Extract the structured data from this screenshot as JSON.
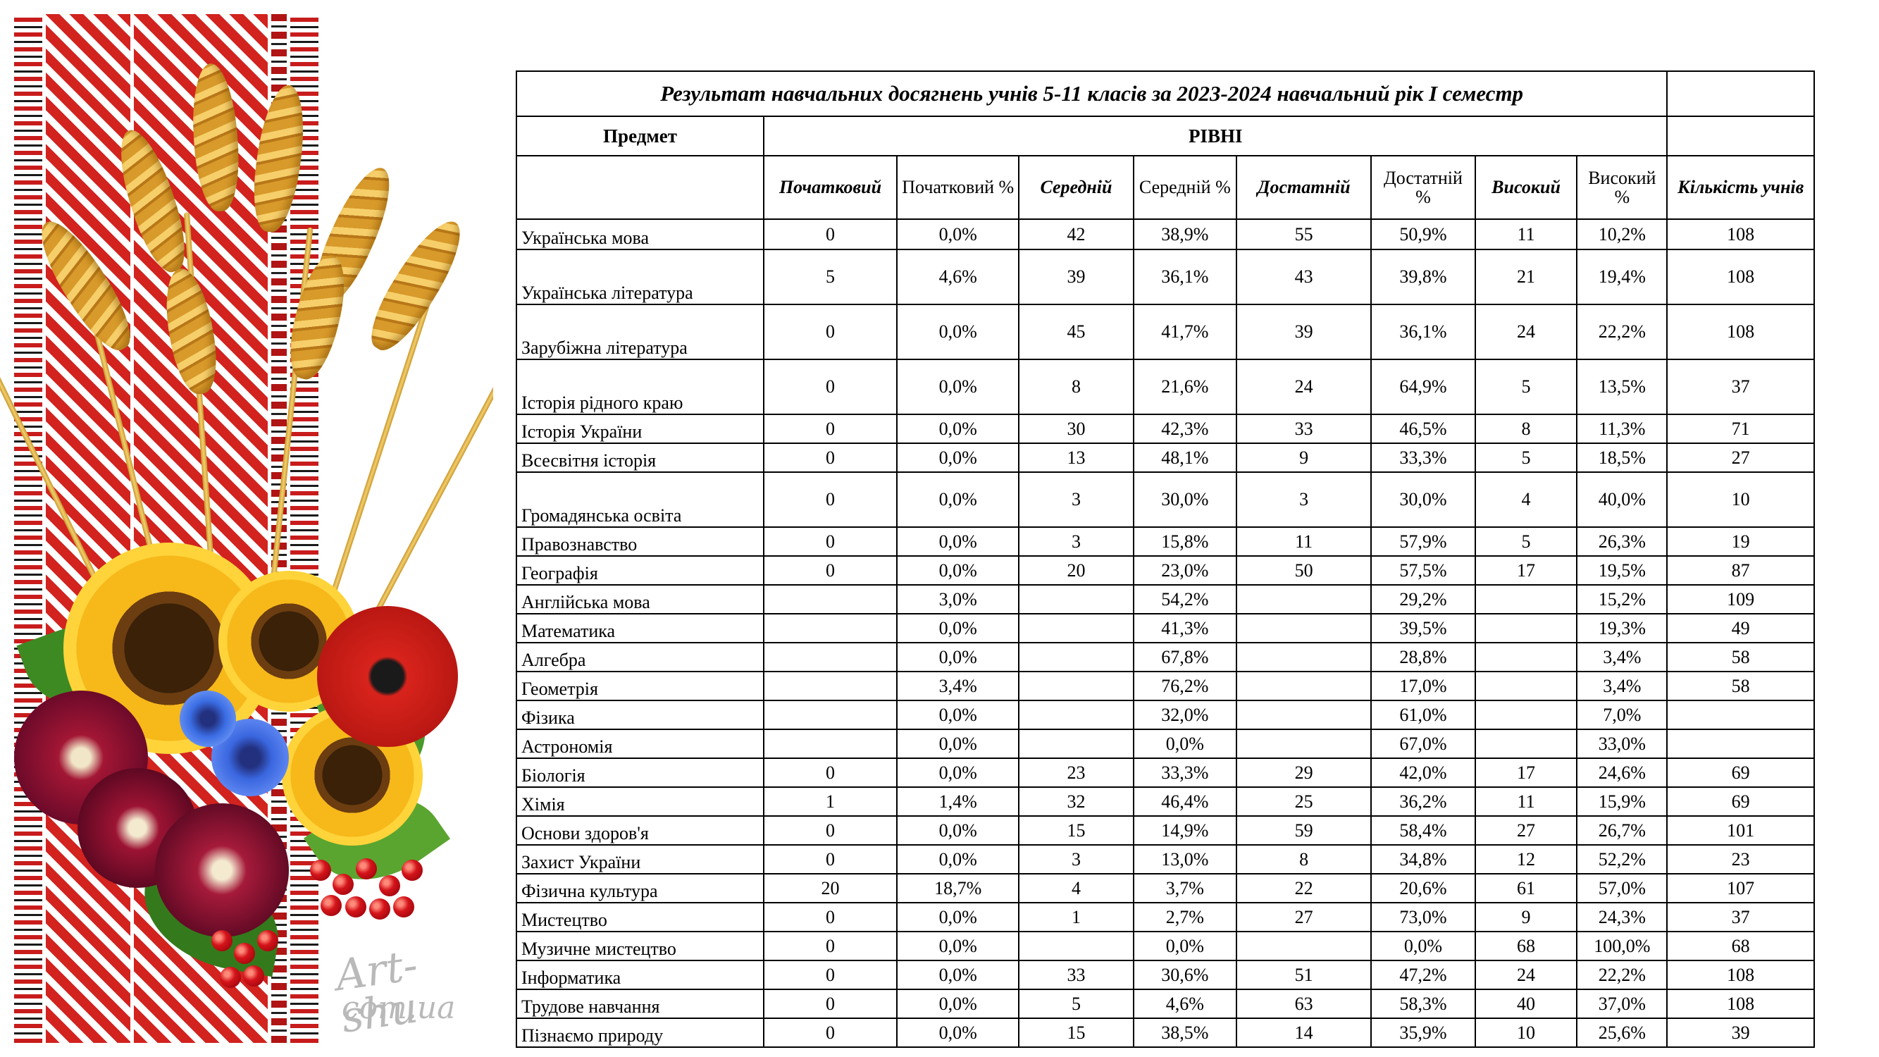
{
  "title": "Результат навчальних досягнень учнів 5-11 класів за 2023-2024 навчальний рік І семестр",
  "headers": {
    "subject": "Предмет",
    "levels": "РІВНІ",
    "beginning": "Початковий",
    "beginning_pct": "Початковий %",
    "middle": "Середній",
    "middle_pct": "Середній %",
    "sufficient": "Достатній",
    "sufficient_pct": "Достатній %",
    "high": "Високий",
    "high_pct": "Високий %",
    "count": "Кількість учнів"
  },
  "watermark": {
    "line1": "Art-shu",
    "line2": "com.ua"
  },
  "rows": [
    {
      "subject": "Українська мова",
      "c0": "0",
      "c1": "0,0%",
      "c2": "42",
      "c3": "38,9%",
      "c4": "55",
      "c5": "50,9%",
      "c6": "11",
      "c7": "10,2%",
      "c8": "108",
      "tall": false
    },
    {
      "subject": "Українська література",
      "c0": "5",
      "c1": "4,6%",
      "c2": "39",
      "c3": "36,1%",
      "c4": "43",
      "c5": "39,8%",
      "c6": "21",
      "c7": "19,4%",
      "c8": "108",
      "tall": true
    },
    {
      "subject": "Зарубіжна література",
      "c0": "0",
      "c1": "0,0%",
      "c2": "45",
      "c3": "41,7%",
      "c4": "39",
      "c5": "36,1%",
      "c6": "24",
      "c7": "22,2%",
      "c8": "108",
      "tall": true
    },
    {
      "subject": "Історія рідного краю",
      "c0": "0",
      "c1": "0,0%",
      "c2": "8",
      "c3": "21,6%",
      "c4": "24",
      "c5": "64,9%",
      "c6": "5",
      "c7": "13,5%",
      "c8": "37",
      "tall": true
    },
    {
      "subject": "Історія України",
      "c0": "0",
      "c1": "0,0%",
      "c2": "30",
      "c3": "42,3%",
      "c4": "33",
      "c5": "46,5%",
      "c6": "8",
      "c7": "11,3%",
      "c8": "71",
      "tall": false
    },
    {
      "subject": "Всесвітня історія",
      "c0": "0",
      "c1": "0,0%",
      "c2": "13",
      "c3": "48,1%",
      "c4": "9",
      "c5": "33,3%",
      "c6": "5",
      "c7": "18,5%",
      "c8": "27",
      "tall": false
    },
    {
      "subject": "Громадянська освіта",
      "c0": "0",
      "c1": "0,0%",
      "c2": "3",
      "c3": "30,0%",
      "c4": "3",
      "c5": "30,0%",
      "c6": "4",
      "c7": "40,0%",
      "c8": "10",
      "tall": true
    },
    {
      "subject": "Правознавство",
      "c0": "0",
      "c1": "0,0%",
      "c2": "3",
      "c3": "15,8%",
      "c4": "11",
      "c5": "57,9%",
      "c6": "5",
      "c7": "26,3%",
      "c8": "19",
      "tall": false
    },
    {
      "subject": "Географія",
      "c0": "0",
      "c1": "0,0%",
      "c2": "20",
      "c3": "23,0%",
      "c4": "50",
      "c5": "57,5%",
      "c6": "17",
      "c7": "19,5%",
      "c8": "87",
      "tall": false
    },
    {
      "subject": "Англійська мова",
      "c0": "",
      "c1": "3,0%",
      "c2": "",
      "c3": "54,2%",
      "c4": "",
      "c5": "29,2%",
      "c6": "",
      "c7": "15,2%",
      "c8": "109",
      "tall": false
    },
    {
      "subject": "Математика",
      "c0": "",
      "c1": "0,0%",
      "c2": "",
      "c3": "41,3%",
      "c4": "",
      "c5": "39,5%",
      "c6": "",
      "c7": "19,3%",
      "c8": "49",
      "tall": false
    },
    {
      "subject": "Алгебра",
      "c0": "",
      "c1": "0,0%",
      "c2": "",
      "c3": "67,8%",
      "c4": "",
      "c5": "28,8%",
      "c6": "",
      "c7": "3,4%",
      "c8": "58",
      "tall": false
    },
    {
      "subject": "Геометрія",
      "c0": "",
      "c1": "3,4%",
      "c2": "",
      "c3": "76,2%",
      "c4": "",
      "c5": "17,0%",
      "c6": "",
      "c7": "3,4%",
      "c8": "58",
      "tall": false
    },
    {
      "subject": "Фізика",
      "c0": "",
      "c1": "0,0%",
      "c2": "",
      "c3": "32,0%",
      "c4": "",
      "c5": "61,0%",
      "c6": "",
      "c7": "7,0%",
      "c8": "",
      "tall": false
    },
    {
      "subject": "Астрономія",
      "c0": "",
      "c1": "0,0%",
      "c2": "",
      "c3": "0,0%",
      "c4": "",
      "c5": "67,0%",
      "c6": "",
      "c7": "33,0%",
      "c8": "",
      "tall": false
    },
    {
      "subject": "Біологія",
      "c0": "0",
      "c1": "0,0%",
      "c2": "23",
      "c3": "33,3%",
      "c4": "29",
      "c5": "42,0%",
      "c6": "17",
      "c7": "24,6%",
      "c8": "69",
      "tall": false
    },
    {
      "subject": "Хімія",
      "c0": "1",
      "c1": "1,4%",
      "c2": "32",
      "c3": "46,4%",
      "c4": "25",
      "c5": "36,2%",
      "c6": "11",
      "c7": "15,9%",
      "c8": "69",
      "tall": false
    },
    {
      "subject": "Основи здоров'я",
      "c0": "0",
      "c1": "0,0%",
      "c2": "15",
      "c3": "14,9%",
      "c4": "59",
      "c5": "58,4%",
      "c6": "27",
      "c7": "26,7%",
      "c8": "101",
      "tall": false
    },
    {
      "subject": "Захист України",
      "c0": "0",
      "c1": "0,0%",
      "c2": "3",
      "c3": "13,0%",
      "c4": "8",
      "c5": "34,8%",
      "c6": "12",
      "c7": "52,2%",
      "c8": "23",
      "tall": false
    },
    {
      "subject": "Фізична культура",
      "c0": "20",
      "c1": "18,7%",
      "c2": "4",
      "c3": "3,7%",
      "c4": "22",
      "c5": "20,6%",
      "c6": "61",
      "c7": "57,0%",
      "c8": "107",
      "tall": false
    },
    {
      "subject": "Мистецтво",
      "c0": "0",
      "c1": "0,0%",
      "c2": "1",
      "c3": "2,7%",
      "c4": "27",
      "c5": "73,0%",
      "c6": "9",
      "c7": "24,3%",
      "c8": "37",
      "tall": false
    },
    {
      "subject": "Музичне мистецтво",
      "c0": "0",
      "c1": "0,0%",
      "c2": "",
      "c3": "0,0%",
      "c4": "",
      "c5": "0,0%",
      "c6": "68",
      "c7": "100,0%",
      "c8": "68",
      "tall": false
    },
    {
      "subject": "Інформатика",
      "c0": "0",
      "c1": "0,0%",
      "c2": "33",
      "c3": "30,6%",
      "c4": "51",
      "c5": "47,2%",
      "c6": "24",
      "c7": "22,2%",
      "c8": "108",
      "tall": false
    },
    {
      "subject": "Трудове навчання",
      "c0": "0",
      "c1": "0,0%",
      "c2": "5",
      "c3": "4,6%",
      "c4": "63",
      "c5": "58,3%",
      "c6": "40",
      "c7": "37,0%",
      "c8": "108",
      "tall": false
    },
    {
      "subject": "Пізнаємо природу",
      "c0": "0",
      "c1": "0,0%",
      "c2": "15",
      "c3": "38,5%",
      "c4": "14",
      "c5": "35,9%",
      "c6": "10",
      "c7": "25,6%",
      "c8": "39",
      "tall": false
    }
  ]
}
